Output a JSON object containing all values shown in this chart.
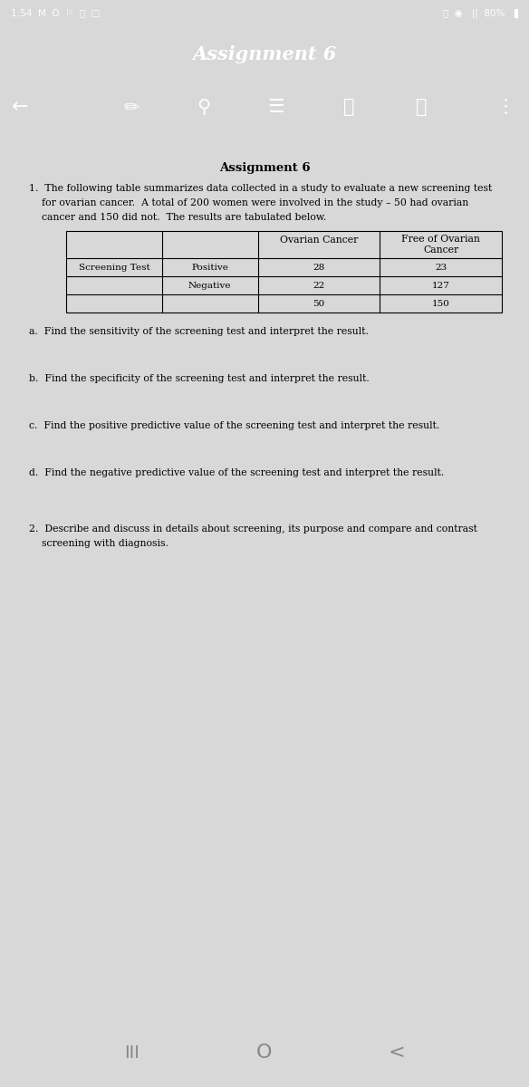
{
  "status_bar_bg": "#3a5ea8",
  "toolbar_title": "Assignment 6",
  "content_bg": "#d8d8d8",
  "doc_bg": "#ffffff",
  "page_title": "Assignment 6",
  "q1_line1": "1.  The following table summarizes data collected in a study to evaluate a new screening test",
  "q1_line2": "    for ovarian cancer.  A total of 200 women were involved in the study – 50 had ovarian",
  "q1_line3": "    cancer and 150 did not.  The results are tabulated below.",
  "col_header3": "Ovarian Cancer",
  "col_header4_line1": "Free of Ovarian",
  "col_header4_line2": "Cancer",
  "row1_c1": "Screening Test",
  "row1_c2": "Positive",
  "row1_c3": "28",
  "row1_c4": "23",
  "row2_c2": "Negative",
  "row2_c3": "22",
  "row2_c4": "127",
  "row3_c3": "50",
  "row3_c4": "150",
  "qa": "a.  Find the sensitivity of the screening test and interpret the result.",
  "qb": "b.  Find the specificity of the screening test and interpret the result.",
  "qc": "c.  Find the positive predictive value of the screening test and interpret the result.",
  "qd": "d.  Find the negative predictive value of the screening test and interpret the result.",
  "q2_line1": "2.  Describe and discuss in details about screening, its purpose and compare and contrast",
  "q2_line2": "    screening with diagnosis.",
  "nav_bg": "#e8e8e8",
  "icon_color": "#888888",
  "white": "#ffffff",
  "blue": "#3a5ea8"
}
